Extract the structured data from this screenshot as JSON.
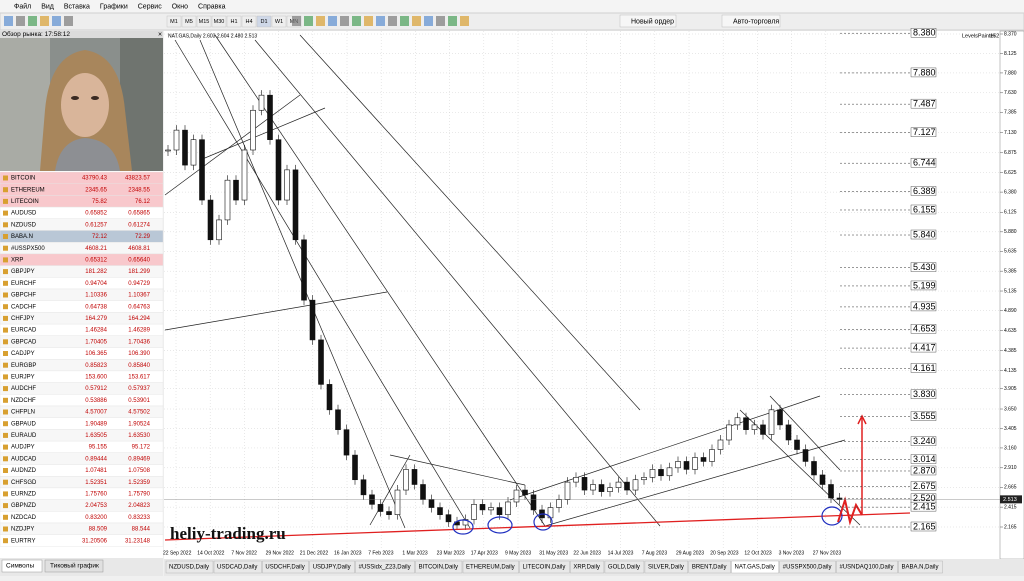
{
  "menu": [
    "Файл",
    "Вид",
    "Вставка",
    "Графики",
    "Сервис",
    "Окно",
    "Справка"
  ],
  "toolbar": {
    "timeframes": [
      "M1",
      "M5",
      "M15",
      "M30",
      "H1",
      "H4",
      "D1",
      "W1",
      "MN"
    ],
    "new_order": "Новый ордер",
    "auto_trading": "Авто-торговля"
  },
  "market_watch": {
    "title": "Обзор рынка: 17:58:12",
    "rows": [
      [
        "BITCOIN",
        "43790.43",
        "43823.57"
      ],
      [
        "ETHEREUM",
        "2345.65",
        "2348.55"
      ],
      [
        "LITECOIN",
        "75.82",
        "76.12"
      ],
      [
        "AUDUSD",
        "0.65852",
        "0.65865"
      ],
      [
        "NZDUSD",
        "0.61257",
        "0.61274"
      ],
      [
        "BABA.N",
        "72.12",
        "72.29"
      ],
      [
        "#USSPX500",
        "4608.21",
        "4608.81"
      ],
      [
        "XRP",
        "0.65312",
        "0.65640"
      ],
      [
        "GBPJPY",
        "181.282",
        "181.299"
      ],
      [
        "EURCHF",
        "0.94704",
        "0.94729"
      ],
      [
        "GBPCHF",
        "1.10336",
        "1.10367"
      ],
      [
        "CADCHF",
        "0.64738",
        "0.64763"
      ],
      [
        "CHFJPY",
        "164.279",
        "164.294"
      ],
      [
        "EURCAD",
        "1.46284",
        "1.46289"
      ],
      [
        "GBPCAD",
        "1.70405",
        "1.70436"
      ],
      [
        "CADJPY",
        "106.365",
        "106.390"
      ],
      [
        "EURGBP",
        "0.85823",
        "0.85840"
      ],
      [
        "EURJPY",
        "153.600",
        "153.617"
      ],
      [
        "AUDCHF",
        "0.57912",
        "0.57937"
      ],
      [
        "NZDCHF",
        "0.53886",
        "0.53901"
      ],
      [
        "CHFPLN",
        "4.57007",
        "4.57502"
      ],
      [
        "GBPAUD",
        "1.90489",
        "1.90524"
      ],
      [
        "EURAUD",
        "1.63505",
        "1.63530"
      ],
      [
        "AUDJPY",
        "95.155",
        "95.172"
      ],
      [
        "AUDCAD",
        "0.89444",
        "0.89469"
      ],
      [
        "AUDNZD",
        "1.07481",
        "1.07508"
      ],
      [
        "CHFSGD",
        "1.52351",
        "1.52359"
      ],
      [
        "EURNZD",
        "1.75760",
        "1.75790"
      ],
      [
        "GBPNZD",
        "2.04753",
        "2.04823"
      ],
      [
        "NZDCAD",
        "0.83200",
        "0.83233"
      ],
      [
        "NZDJPY",
        "88.509",
        "88.544"
      ],
      [
        "EURTRY",
        "31.20506",
        "31.23148"
      ]
    ],
    "tabs": [
      "Символы",
      "Тиковый график"
    ]
  },
  "chart": {
    "header": "NAT.GAS,Daily 2.603 2.604 2.480 2.513",
    "indicator": "LevelsPainter",
    "indicator_value": "152",
    "price_ticks": [
      "8.370",
      "8.125",
      "7.880",
      "7.630",
      "7.385",
      "7.130",
      "6.875",
      "6.625",
      "6.380",
      "6.125",
      "5.880",
      "5.635",
      "5.385",
      "5.135",
      "4.890",
      "4.635",
      "4.385",
      "4.135",
      "3.905",
      "3.650",
      "3.405",
      "3.160",
      "2.910",
      "2.665",
      "2.415",
      "2.165"
    ],
    "levels": [
      "8.380",
      "7.880",
      "7.487",
      "7.127",
      "6.744",
      "6.389",
      "6.155",
      "5.840",
      "5.430",
      "5.199",
      "4.935",
      "4.653",
      "4.417",
      "4.161",
      "3.830",
      "3.555",
      "3.240",
      "3.014",
      "2.870",
      "2.675",
      "2.520",
      "2.415",
      "2.165"
    ],
    "current_price": "2.513",
    "dates": [
      "22 Sep 2022",
      "14 Oct 2022",
      "7 Nov 2022",
      "29 Nov 2022",
      "21 Dec 2022",
      "16 Jan 2023",
      "7 Feb 2023",
      "1 Mar 2023",
      "23 Mar 2023",
      "17 Apr 2023",
      "9 May 2023",
      "31 May 2023",
      "22 Jun 2023",
      "14 Jul 2023",
      "7 Aug 2023",
      "29 Aug 2023",
      "20 Sep 2023",
      "12 Oct 2023",
      "3 Nov 2023",
      "27 Nov 2023"
    ],
    "closes": [
      6.91,
      7.16,
      6.72,
      7.04,
      6.28,
      5.78,
      6.03,
      6.53,
      6.28,
      6.91,
      7.41,
      7.6,
      7.04,
      6.28,
      6.66,
      5.78,
      5.02,
      4.52,
      3.96,
      3.64,
      3.39,
      3.07,
      2.76,
      2.57,
      2.45,
      2.36,
      2.32,
      2.63,
      2.89,
      2.7,
      2.51,
      2.41,
      2.32,
      2.23,
      2.19,
      2.26,
      2.45,
      2.38,
      2.41,
      2.32,
      2.48,
      2.63,
      2.57,
      2.38,
      2.28,
      2.41,
      2.51,
      2.73,
      2.79,
      2.63,
      2.7,
      2.61,
      2.66,
      2.73,
      2.63,
      2.76,
      2.79,
      2.89,
      2.81,
      2.91,
      2.99,
      2.89,
      3.04,
      2.99,
      3.14,
      3.26,
      3.45,
      3.54,
      3.39,
      3.45,
      3.33,
      3.64,
      3.45,
      3.26,
      3.14,
      2.99,
      2.82,
      2.7,
      2.53,
      2.51
    ],
    "watermark": "heliy-trading.ru"
  },
  "chart_tabs": [
    "NZDUSD,Daily",
    "USDCAD,Daily",
    "USDCHF,Daily",
    "USDJPY,Daily",
    "#USSidx_Z23,Daily",
    "BITCOIN,Daily",
    "ETHEREUM,Daily",
    "LITECOIN,Daily",
    "XRP,Daily",
    "GOLD,Daily",
    "SILVER,Daily",
    "BRENT,Daily",
    "NAT.GAS,Daily",
    "#USSPX500,Daily",
    "#USNDAQ100,Daily",
    "BABA.N,Daily"
  ],
  "active_tab": 12
}
